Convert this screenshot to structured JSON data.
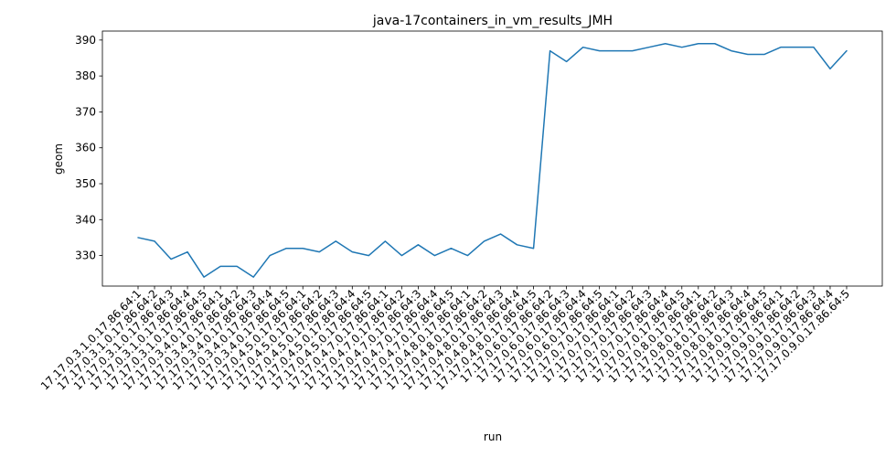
{
  "chart_data": {
    "type": "line",
    "title": "java-17containers_in_vm_results_JMH",
    "xlabel": "run",
    "ylabel": "geom",
    "ylim": [
      321.5,
      392.5
    ],
    "yticks": [
      330,
      340,
      350,
      360,
      370,
      380,
      390
    ],
    "grid": false,
    "categories": [
      "17.17.0.3.1.0.17.86.64:1",
      "17.17.0.3.1.0.17.86.64:2",
      "17.17.0.3.1.0.17.86.64:3",
      "17.17.0.3.1.0.17.86.64:4",
      "17.17.0.3.1.0.17.86.64:5",
      "17.17.0.3.4.0.17.86.64:1",
      "17.17.0.3.4.0.17.86.64:2",
      "17.17.0.3.4.0.17.86.64:3",
      "17.17.0.3.4.0.17.86.64:4",
      "17.17.0.3.4.0.17.86.64:5",
      "17.17.0.4.5.0.17.86.64:1",
      "17.17.0.4.5.0.17.86.64:2",
      "17.17.0.4.5.0.17.86.64:3",
      "17.17.0.4.5.0.17.86.64:4",
      "17.17.0.4.5.0.17.86.64:5",
      "17.17.0.4.7.0.17.86.64:1",
      "17.17.0.4.7.0.17.86.64:2",
      "17.17.0.4.7.0.17.86.64:3",
      "17.17.0.4.7.0.17.86.64:4",
      "17.17.0.4.7.0.17.86.64:5",
      "17.17.0.4.8.0.17.86.64:1",
      "17.17.0.4.8.0.17.86.64:2",
      "17.17.0.4.8.0.17.86.64:3",
      "17.17.0.4.8.0.17.86.64:4",
      "17.17.0.4.8.0.17.86.64:5",
      "17.17.0.6.0.17.86.64:2",
      "17.17.0.6.0.17.86.64:3",
      "17.17.0.6.0.17.86.64:4",
      "17.17.0.6.0.17.86.64:5",
      "17.17.0.7.0.17.86.64:1",
      "17.17.0.7.0.17.86.64:2",
      "17.17.0.7.0.17.86.64:3",
      "17.17.0.7.0.17.86.64:4",
      "17.17.0.7.0.17.86.64:5",
      "17.17.0.8.0.17.86.64:1",
      "17.17.0.8.0.17.86.64:2",
      "17.17.0.8.0.17.86.64:3",
      "17.17.0.8.0.17.86.64:4",
      "17.17.0.8.0.17.86.64:5",
      "17.17.0.9.0.17.86.64:1",
      "17.17.0.9.0.17.86.64:2",
      "17.17.0.9.0.17.86.64:3",
      "17.17.0.9.0.17.86.64:4",
      "17.17.0.9.0.17.86.64:5"
    ],
    "series": [
      {
        "color": "#1f77b4",
        "values": [
          335,
          334,
          329,
          331,
          324,
          327,
          327,
          324,
          330,
          332,
          332,
          331,
          334,
          331,
          330,
          334,
          330,
          333,
          330,
          332,
          330,
          334,
          336,
          333,
          332,
          387,
          384,
          388,
          387,
          387,
          387,
          388,
          389,
          388,
          389,
          389,
          387,
          386,
          386,
          388,
          388,
          388,
          382,
          387
        ]
      }
    ]
  }
}
